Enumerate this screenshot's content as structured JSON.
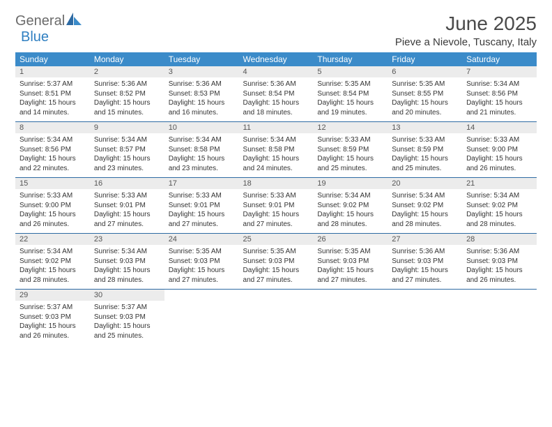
{
  "logo": {
    "general": "General",
    "blue": "Blue"
  },
  "title": "June 2025",
  "location": "Pieve a Nievole, Tuscany, Italy",
  "colors": {
    "header_bg": "#3b8bc9",
    "header_text": "#ffffff",
    "daynum_bg": "#ececec",
    "separator": "#2d6aa3",
    "logo_gray": "#6b6b6b",
    "logo_blue": "#2f7fc1"
  },
  "weekdays": [
    "Sunday",
    "Monday",
    "Tuesday",
    "Wednesday",
    "Thursday",
    "Friday",
    "Saturday"
  ],
  "weeks": [
    [
      {
        "n": "1",
        "sr": "Sunrise: 5:37 AM",
        "ss": "Sunset: 8:51 PM",
        "d1": "Daylight: 15 hours",
        "d2": "and 14 minutes."
      },
      {
        "n": "2",
        "sr": "Sunrise: 5:36 AM",
        "ss": "Sunset: 8:52 PM",
        "d1": "Daylight: 15 hours",
        "d2": "and 15 minutes."
      },
      {
        "n": "3",
        "sr": "Sunrise: 5:36 AM",
        "ss": "Sunset: 8:53 PM",
        "d1": "Daylight: 15 hours",
        "d2": "and 16 minutes."
      },
      {
        "n": "4",
        "sr": "Sunrise: 5:36 AM",
        "ss": "Sunset: 8:54 PM",
        "d1": "Daylight: 15 hours",
        "d2": "and 18 minutes."
      },
      {
        "n": "5",
        "sr": "Sunrise: 5:35 AM",
        "ss": "Sunset: 8:54 PM",
        "d1": "Daylight: 15 hours",
        "d2": "and 19 minutes."
      },
      {
        "n": "6",
        "sr": "Sunrise: 5:35 AM",
        "ss": "Sunset: 8:55 PM",
        "d1": "Daylight: 15 hours",
        "d2": "and 20 minutes."
      },
      {
        "n": "7",
        "sr": "Sunrise: 5:34 AM",
        "ss": "Sunset: 8:56 PM",
        "d1": "Daylight: 15 hours",
        "d2": "and 21 minutes."
      }
    ],
    [
      {
        "n": "8",
        "sr": "Sunrise: 5:34 AM",
        "ss": "Sunset: 8:56 PM",
        "d1": "Daylight: 15 hours",
        "d2": "and 22 minutes."
      },
      {
        "n": "9",
        "sr": "Sunrise: 5:34 AM",
        "ss": "Sunset: 8:57 PM",
        "d1": "Daylight: 15 hours",
        "d2": "and 23 minutes."
      },
      {
        "n": "10",
        "sr": "Sunrise: 5:34 AM",
        "ss": "Sunset: 8:58 PM",
        "d1": "Daylight: 15 hours",
        "d2": "and 23 minutes."
      },
      {
        "n": "11",
        "sr": "Sunrise: 5:34 AM",
        "ss": "Sunset: 8:58 PM",
        "d1": "Daylight: 15 hours",
        "d2": "and 24 minutes."
      },
      {
        "n": "12",
        "sr": "Sunrise: 5:33 AM",
        "ss": "Sunset: 8:59 PM",
        "d1": "Daylight: 15 hours",
        "d2": "and 25 minutes."
      },
      {
        "n": "13",
        "sr": "Sunrise: 5:33 AM",
        "ss": "Sunset: 8:59 PM",
        "d1": "Daylight: 15 hours",
        "d2": "and 25 minutes."
      },
      {
        "n": "14",
        "sr": "Sunrise: 5:33 AM",
        "ss": "Sunset: 9:00 PM",
        "d1": "Daylight: 15 hours",
        "d2": "and 26 minutes."
      }
    ],
    [
      {
        "n": "15",
        "sr": "Sunrise: 5:33 AM",
        "ss": "Sunset: 9:00 PM",
        "d1": "Daylight: 15 hours",
        "d2": "and 26 minutes."
      },
      {
        "n": "16",
        "sr": "Sunrise: 5:33 AM",
        "ss": "Sunset: 9:01 PM",
        "d1": "Daylight: 15 hours",
        "d2": "and 27 minutes."
      },
      {
        "n": "17",
        "sr": "Sunrise: 5:33 AM",
        "ss": "Sunset: 9:01 PM",
        "d1": "Daylight: 15 hours",
        "d2": "and 27 minutes."
      },
      {
        "n": "18",
        "sr": "Sunrise: 5:33 AM",
        "ss": "Sunset: 9:01 PM",
        "d1": "Daylight: 15 hours",
        "d2": "and 27 minutes."
      },
      {
        "n": "19",
        "sr": "Sunrise: 5:34 AM",
        "ss": "Sunset: 9:02 PM",
        "d1": "Daylight: 15 hours",
        "d2": "and 28 minutes."
      },
      {
        "n": "20",
        "sr": "Sunrise: 5:34 AM",
        "ss": "Sunset: 9:02 PM",
        "d1": "Daylight: 15 hours",
        "d2": "and 28 minutes."
      },
      {
        "n": "21",
        "sr": "Sunrise: 5:34 AM",
        "ss": "Sunset: 9:02 PM",
        "d1": "Daylight: 15 hours",
        "d2": "and 28 minutes."
      }
    ],
    [
      {
        "n": "22",
        "sr": "Sunrise: 5:34 AM",
        "ss": "Sunset: 9:02 PM",
        "d1": "Daylight: 15 hours",
        "d2": "and 28 minutes."
      },
      {
        "n": "23",
        "sr": "Sunrise: 5:34 AM",
        "ss": "Sunset: 9:03 PM",
        "d1": "Daylight: 15 hours",
        "d2": "and 28 minutes."
      },
      {
        "n": "24",
        "sr": "Sunrise: 5:35 AM",
        "ss": "Sunset: 9:03 PM",
        "d1": "Daylight: 15 hours",
        "d2": "and 27 minutes."
      },
      {
        "n": "25",
        "sr": "Sunrise: 5:35 AM",
        "ss": "Sunset: 9:03 PM",
        "d1": "Daylight: 15 hours",
        "d2": "and 27 minutes."
      },
      {
        "n": "26",
        "sr": "Sunrise: 5:35 AM",
        "ss": "Sunset: 9:03 PM",
        "d1": "Daylight: 15 hours",
        "d2": "and 27 minutes."
      },
      {
        "n": "27",
        "sr": "Sunrise: 5:36 AM",
        "ss": "Sunset: 9:03 PM",
        "d1": "Daylight: 15 hours",
        "d2": "and 27 minutes."
      },
      {
        "n": "28",
        "sr": "Sunrise: 5:36 AM",
        "ss": "Sunset: 9:03 PM",
        "d1": "Daylight: 15 hours",
        "d2": "and 26 minutes."
      }
    ],
    [
      {
        "n": "29",
        "sr": "Sunrise: 5:37 AM",
        "ss": "Sunset: 9:03 PM",
        "d1": "Daylight: 15 hours",
        "d2": "and 26 minutes."
      },
      {
        "n": "30",
        "sr": "Sunrise: 5:37 AM",
        "ss": "Sunset: 9:03 PM",
        "d1": "Daylight: 15 hours",
        "d2": "and 25 minutes."
      },
      null,
      null,
      null,
      null,
      null
    ]
  ]
}
